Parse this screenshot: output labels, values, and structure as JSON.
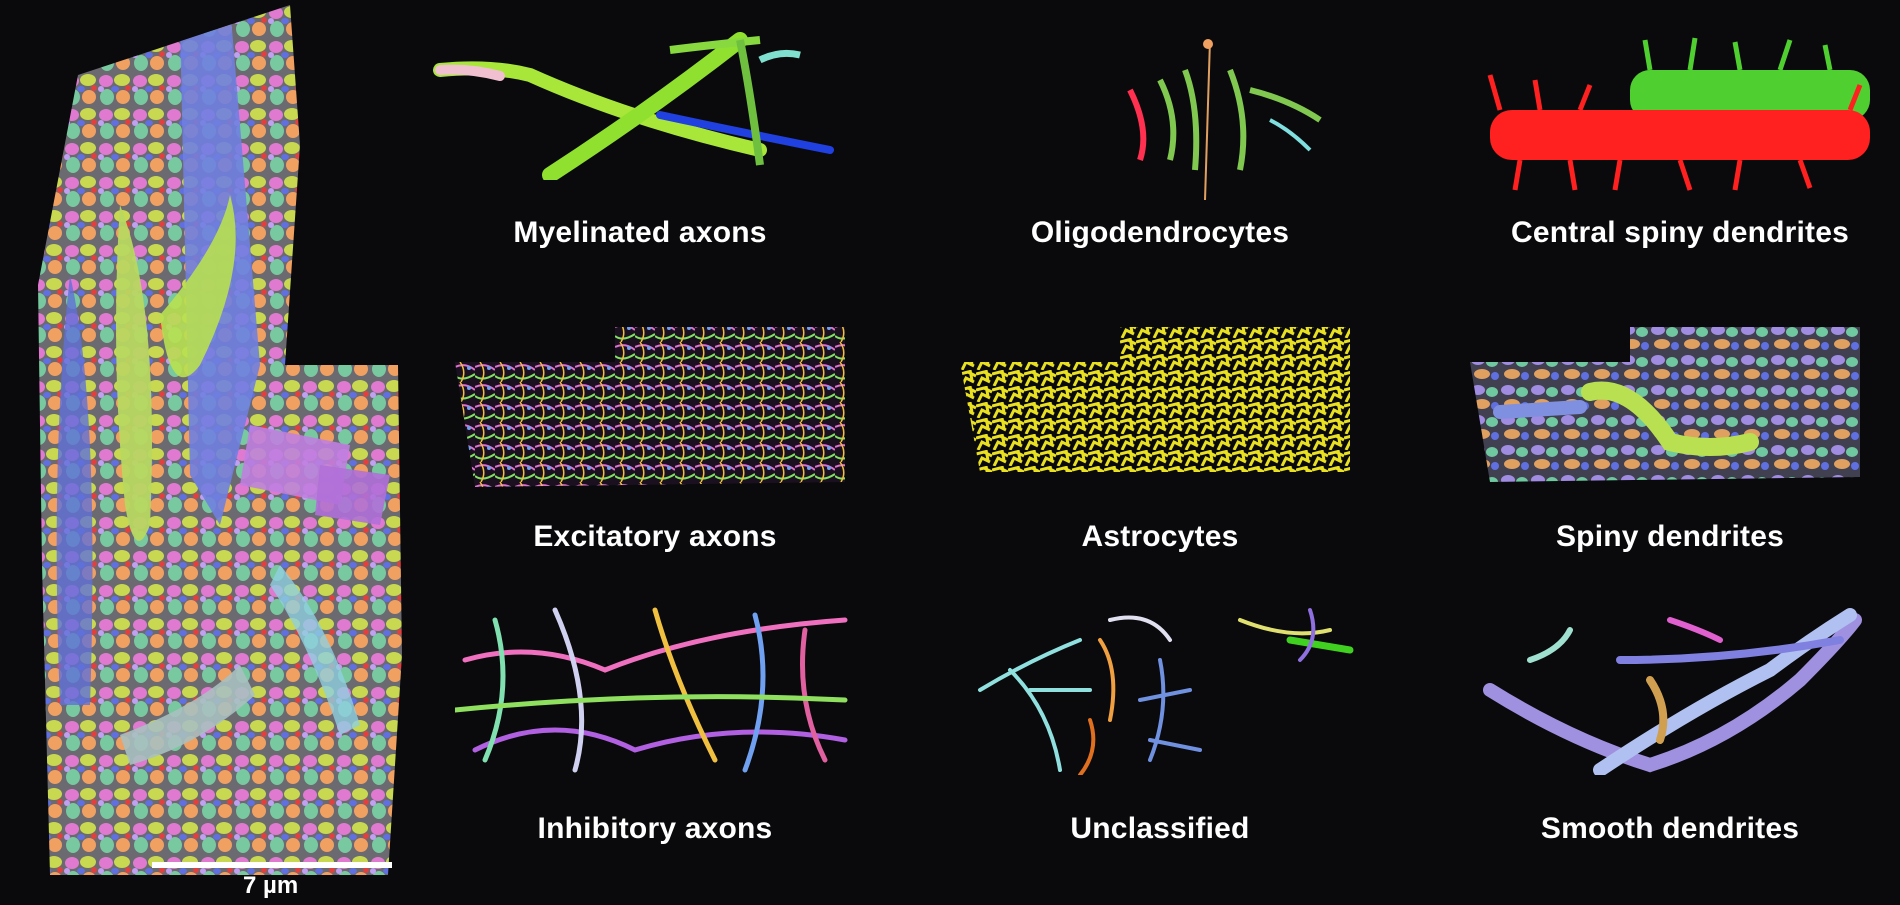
{
  "figure": {
    "scale_bar_label": "7 µm",
    "panels": [
      {
        "id": "myelinated-axons",
        "label": "Myelinated axons",
        "color": "#a8e63a"
      },
      {
        "id": "oligodendrocytes",
        "label": "Oligodendrocytes",
        "color": "#7ec850"
      },
      {
        "id": "central-spiny-dendrites",
        "label": "Central spiny dendrites",
        "color": "#ff2020"
      },
      {
        "id": "excitatory-axons",
        "label": "Excitatory axons",
        "color": "#c060d0"
      },
      {
        "id": "astrocytes",
        "label": "Astrocytes",
        "color": "#e6e020"
      },
      {
        "id": "spiny-dendrites",
        "label": "Spiny dendrites",
        "color": "#8aa0e8"
      },
      {
        "id": "inhibitory-axons",
        "label": "Inhibitory axons",
        "color": "#f070c0"
      },
      {
        "id": "unclassified",
        "label": "Unclassified",
        "color": "#9ab0f0"
      },
      {
        "id": "smooth-dendrites",
        "label": "Smooth dendrites",
        "color": "#a090e0"
      }
    ]
  }
}
